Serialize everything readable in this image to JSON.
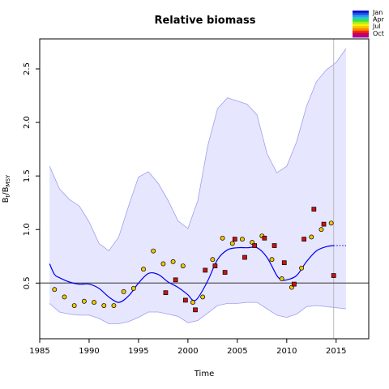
{
  "chart_data": {
    "type": "line",
    "title": "Relative biomass",
    "xlabel": "Time",
    "ylabel": "B_t/B_MSY",
    "ylabel_main": "B",
    "ylabel_sub": "t",
    "ylabel_sep": "/B",
    "ylabel_sub2": "MSY",
    "xlim": [
      1985,
      2018.3
    ],
    "ylim": [
      -0.02,
      2.78
    ],
    "xticks": [
      1985,
      1990,
      1995,
      2000,
      2005,
      2010,
      2015
    ],
    "yticks": [
      0.5,
      1.0,
      1.5,
      2.0,
      2.5
    ],
    "reference_line": 0.5,
    "vertical_line": 2014.75,
    "colors": {
      "band_fill": "#e6e6ff",
      "band_edge": "#9e9ef0",
      "median": "#0000ee",
      "reference": "#555555",
      "vline": "#b8b8b8",
      "circle_fill": "#f0c800",
      "square_fill": "#cc1111"
    },
    "band": {
      "x": [
        1986,
        1987,
        1988,
        1989,
        1990,
        1991,
        1992,
        1993,
        1994,
        1995,
        1996,
        1997,
        1998,
        1999,
        2000,
        2001,
        2002,
        2003,
        2004,
        2005,
        2006,
        2007,
        2008,
        2009,
        2010,
        2011,
        2012,
        2013,
        2014,
        2015,
        2016
      ],
      "upper": [
        1.59,
        1.38,
        1.28,
        1.22,
        1.07,
        0.87,
        0.8,
        0.93,
        1.22,
        1.49,
        1.54,
        1.43,
        1.27,
        1.08,
        1.01,
        1.27,
        1.78,
        2.13,
        2.23,
        2.2,
        2.17,
        2.07,
        1.71,
        1.53,
        1.59,
        1.82,
        2.15,
        2.38,
        2.49,
        2.56,
        2.69
      ],
      "lower": [
        0.31,
        0.23,
        0.21,
        0.2,
        0.2,
        0.17,
        0.12,
        0.12,
        0.14,
        0.18,
        0.23,
        0.23,
        0.21,
        0.19,
        0.13,
        0.15,
        0.22,
        0.29,
        0.31,
        0.31,
        0.32,
        0.32,
        0.26,
        0.2,
        0.18,
        0.21,
        0.28,
        0.29,
        0.28,
        0.27,
        0.26
      ]
    },
    "median": {
      "x": [
        1986,
        1986.5,
        1987,
        1988,
        1989,
        1990,
        1991,
        1992,
        1993,
        1994,
        1995,
        1996,
        1997,
        1998,
        1999,
        2000,
        2000.5,
        2001,
        2002,
        2003,
        2004,
        2005,
        2006,
        2007,
        2008,
        2009,
        2009.5,
        2010,
        2011,
        2012,
        2013,
        2014,
        2014.75
      ],
      "y": [
        0.68,
        0.58,
        0.55,
        0.51,
        0.49,
        0.49,
        0.45,
        0.37,
        0.32,
        0.38,
        0.5,
        0.59,
        0.58,
        0.51,
        0.46,
        0.39,
        0.34,
        0.36,
        0.52,
        0.72,
        0.81,
        0.83,
        0.83,
        0.83,
        0.74,
        0.57,
        0.53,
        0.53,
        0.57,
        0.7,
        0.8,
        0.84,
        0.85
      ]
    },
    "prediction": {
      "x": [
        2014.75,
        2016
      ],
      "y": [
        0.85,
        0.85
      ]
    },
    "series": [
      {
        "marker": "circle",
        "x": [
          1986.5,
          1987.5,
          1988.5,
          1989.5,
          1990.5,
          1991.5,
          1992.5,
          1993.5,
          1994.5,
          1995.5,
          1996.5,
          1997.5,
          1998.5,
          1999.5,
          2000.5,
          2001.5,
          2002.5,
          2003.5,
          2004.5,
          2005.5,
          2006.5,
          2007.5,
          2008.5,
          2009.5,
          2010.5,
          2011.5,
          2012.5,
          2013.5,
          2014.5
        ],
        "y": [
          0.44,
          0.37,
          0.29,
          0.33,
          0.32,
          0.29,
          0.29,
          0.42,
          0.45,
          0.63,
          0.8,
          0.68,
          0.7,
          0.66,
          0.32,
          0.37,
          0.72,
          0.92,
          0.87,
          0.91,
          0.88,
          0.94,
          0.72,
          0.54,
          0.46,
          0.64,
          0.93,
          1.0,
          1.06
        ]
      },
      {
        "marker": "square",
        "x": [
          1997.75,
          1998.75,
          1999.75,
          2000.75,
          2001.75,
          2002.75,
          2003.75,
          2004.75,
          2005.75,
          2006.75,
          2007.75,
          2008.75,
          2009.75,
          2010.75,
          2011.75,
          2012.75,
          2013.75,
          2014.75
        ],
        "y": [
          0.41,
          0.53,
          0.34,
          0.25,
          0.62,
          0.66,
          0.6,
          0.91,
          0.74,
          0.85,
          0.92,
          0.85,
          0.69,
          0.49,
          0.91,
          1.19,
          1.05,
          0.57
        ]
      }
    ],
    "legend": {
      "position": "top-right",
      "labels": [
        "Jan",
        "Apr",
        "Jul",
        "Oct"
      ],
      "colors": [
        "#1010cc",
        "#1d4fe8",
        "#2c9ef0",
        "#25d0c0",
        "#40e040",
        "#a8ec20",
        "#f5f500",
        "#f8c000",
        "#f88800",
        "#f03000",
        "#d00050",
        "#a800a0"
      ]
    }
  }
}
